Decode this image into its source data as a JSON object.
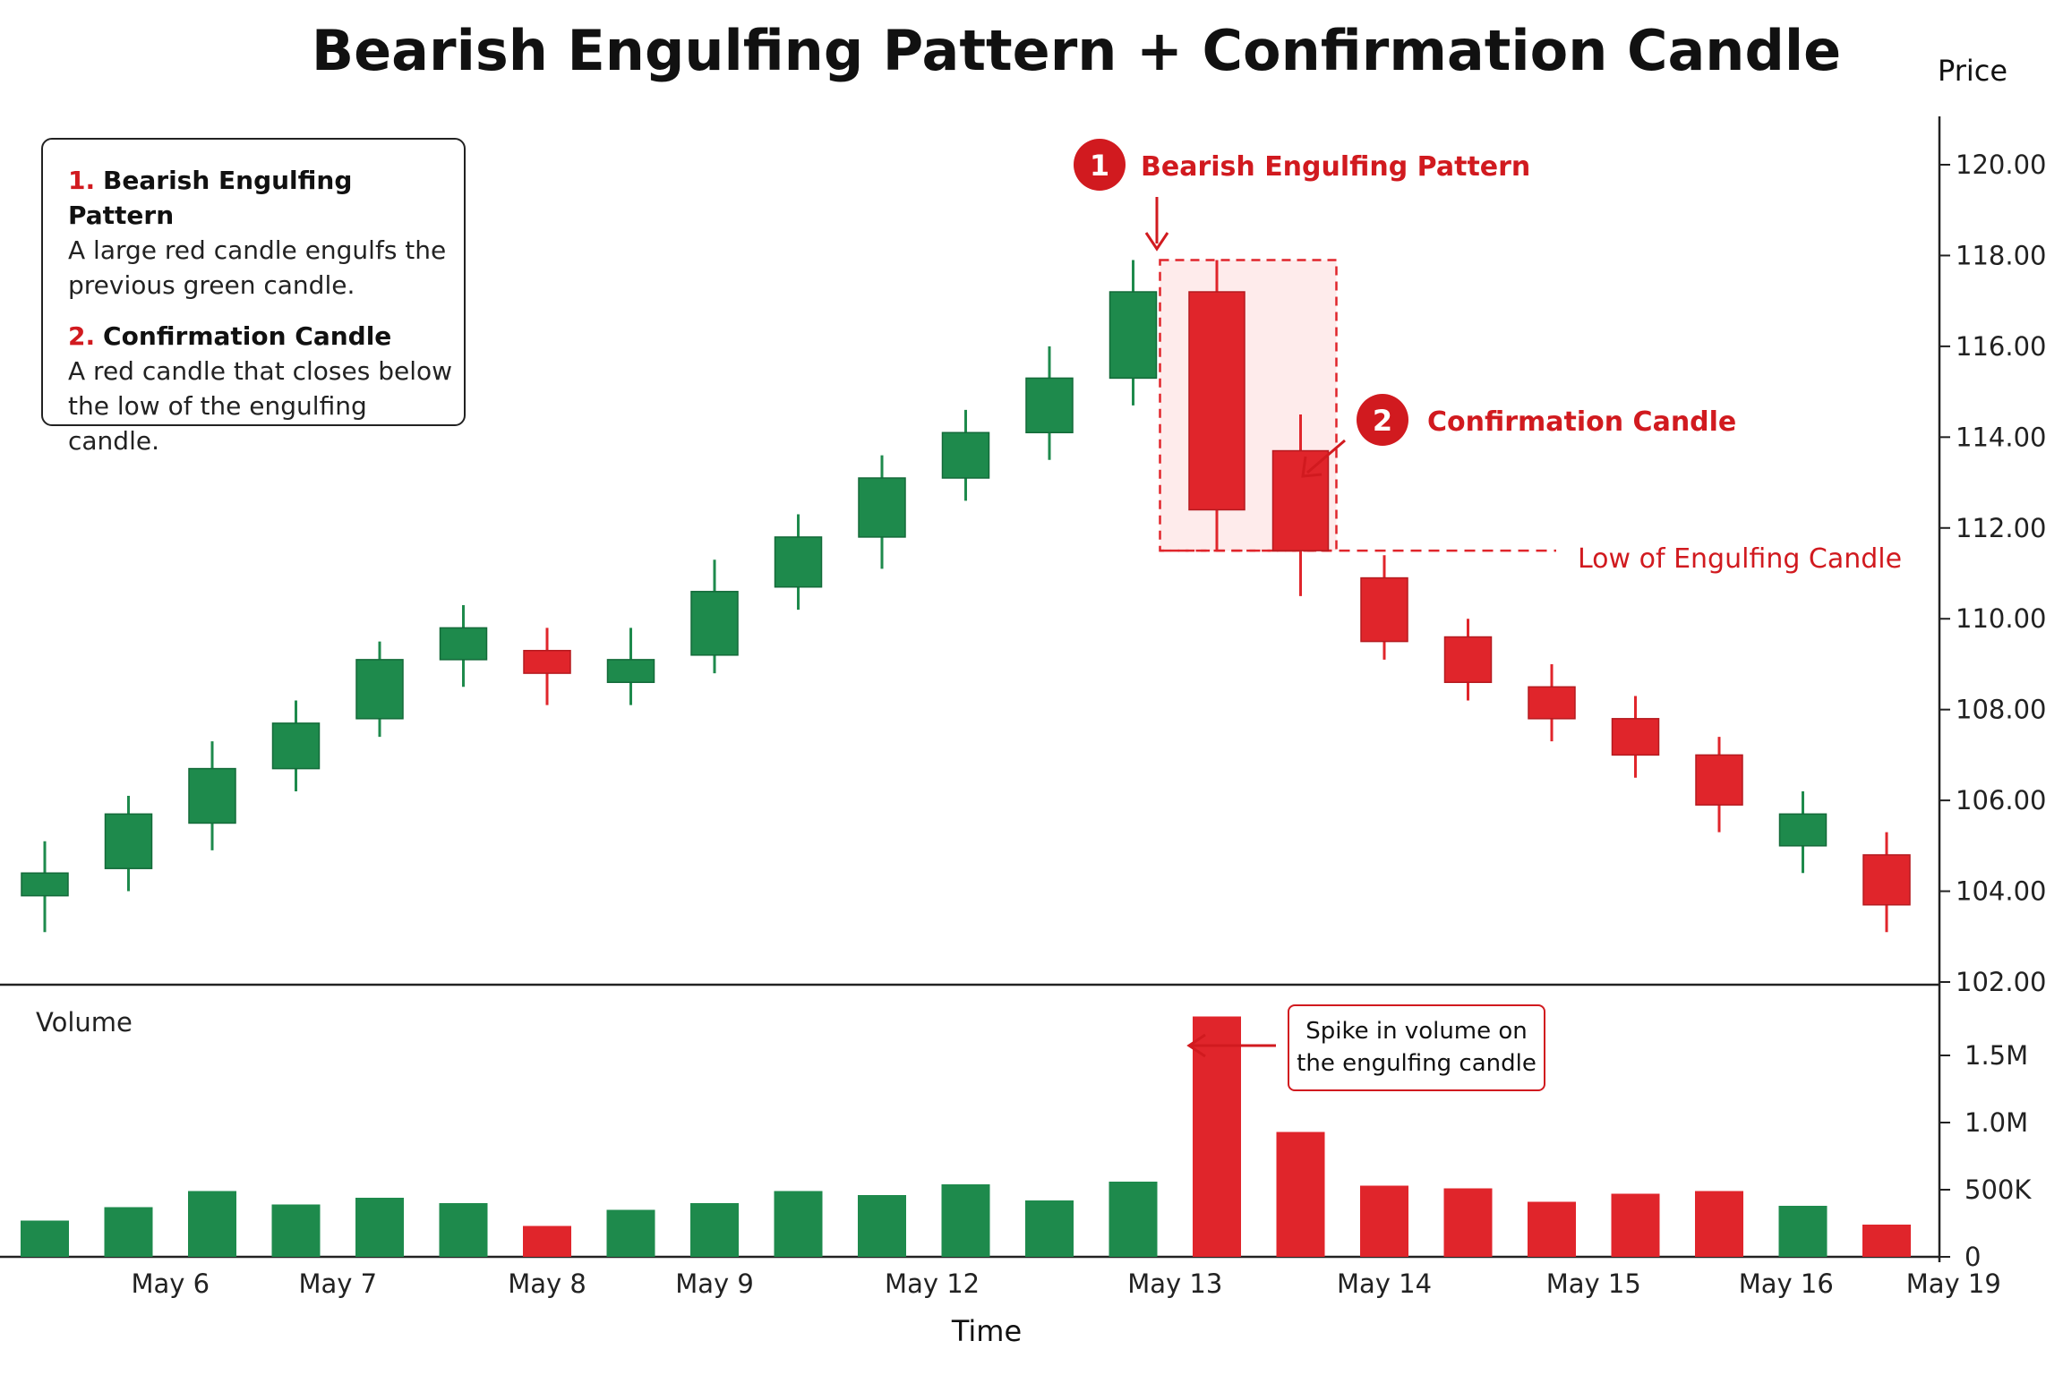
{
  "chart_data": {
    "type": "candlestick",
    "title": "Bearish Engulfing Pattern + Confirmation Candle",
    "xlabel": "Time",
    "ylabel": "Price",
    "volume_label": "Volume",
    "price_ticks": [
      "102.00",
      "104.00",
      "106.00",
      "108.00",
      "110.00",
      "112.00",
      "114.00",
      "116.00",
      "118.00",
      "120.00"
    ],
    "price_ylim": [
      102,
      120
    ],
    "volume_ticks": [
      "0",
      "500K",
      "1.0M",
      "1.5M"
    ],
    "volume_ylim": [
      0,
      1800000
    ],
    "x_tick_labels": [
      {
        "label": "May 6",
        "index": 1.5
      },
      {
        "label": "May 7",
        "index": 3.5
      },
      {
        "label": "May 8",
        "index": 6
      },
      {
        "label": "May 9",
        "index": 8
      },
      {
        "label": "May 12",
        "index": 10.6
      },
      {
        "label": "May 13",
        "index": 13.5
      },
      {
        "label": "May 14",
        "index": 16
      },
      {
        "label": "May 15",
        "index": 18.5
      },
      {
        "label": "May 16",
        "index": 20.8
      },
      {
        "label": "May 19",
        "index": 22.8
      }
    ],
    "candles": [
      {
        "open": 103.9,
        "high": 105.1,
        "low": 103.1,
        "close": 104.4,
        "volume": 270000
      },
      {
        "open": 104.5,
        "high": 106.1,
        "low": 104.0,
        "close": 105.7,
        "volume": 370000
      },
      {
        "open": 105.5,
        "high": 107.3,
        "low": 104.9,
        "close": 106.7,
        "volume": 490000
      },
      {
        "open": 106.7,
        "high": 108.2,
        "low": 106.2,
        "close": 107.7,
        "volume": 390000
      },
      {
        "open": 107.8,
        "high": 109.5,
        "low": 107.4,
        "close": 109.1,
        "volume": 440000
      },
      {
        "open": 109.1,
        "high": 110.3,
        "low": 108.5,
        "close": 109.8,
        "volume": 400000
      },
      {
        "open": 109.3,
        "high": 109.8,
        "low": 108.1,
        "close": 108.8,
        "volume": 230000
      },
      {
        "open": 108.6,
        "high": 109.8,
        "low": 108.1,
        "close": 109.1,
        "volume": 350000
      },
      {
        "open": 109.2,
        "high": 111.3,
        "low": 108.8,
        "close": 110.6,
        "volume": 400000
      },
      {
        "open": 110.7,
        "high": 112.3,
        "low": 110.2,
        "close": 111.8,
        "volume": 490000
      },
      {
        "open": 111.8,
        "high": 113.6,
        "low": 111.1,
        "close": 113.1,
        "volume": 460000
      },
      {
        "open": 113.1,
        "high": 114.6,
        "low": 112.6,
        "close": 114.1,
        "volume": 540000
      },
      {
        "open": 114.1,
        "high": 116.0,
        "low": 113.5,
        "close": 115.3,
        "volume": 420000
      },
      {
        "open": 115.3,
        "high": 117.9,
        "low": 114.7,
        "close": 117.2,
        "volume": 560000
      },
      {
        "open": 117.2,
        "high": 117.9,
        "low": 111.5,
        "close": 112.4,
        "volume": 1790000
      },
      {
        "open": 113.7,
        "high": 114.5,
        "low": 110.5,
        "close": 111.5,
        "volume": 930000
      },
      {
        "open": 110.9,
        "high": 111.4,
        "low": 109.1,
        "close": 109.5,
        "volume": 530000
      },
      {
        "open": 109.6,
        "high": 110.0,
        "low": 108.2,
        "close": 108.6,
        "volume": 510000
      },
      {
        "open": 108.5,
        "high": 109.0,
        "low": 107.3,
        "close": 107.8,
        "volume": 410000
      },
      {
        "open": 107.8,
        "high": 108.3,
        "low": 106.5,
        "close": 107.0,
        "volume": 470000
      },
      {
        "open": 107.0,
        "high": 107.4,
        "low": 105.3,
        "close": 105.9,
        "volume": 490000
      },
      {
        "open": 105.0,
        "high": 106.2,
        "low": 104.4,
        "close": 105.7,
        "volume": 380000
      },
      {
        "open": 104.8,
        "high": 105.3,
        "low": 103.1,
        "close": 103.7,
        "volume": 240000
      }
    ],
    "colors": {
      "up": "#1e8a4c",
      "down": "#e0252b",
      "accent": "#d11a1f",
      "highlight": "#fde4e4"
    },
    "grid": false
  },
  "annotations": {
    "engulfing_number": "1",
    "engulfing_label": "Bearish Engulfing Pattern",
    "confirmation_number": "2",
    "confirmation_label": "Confirmation Candle",
    "low_line_label": "Low of Engulfing Candle",
    "low_line_value": 111.5,
    "spike_line1": "Spike in volume on",
    "spike_line2": "the engulfing candle"
  },
  "legend": {
    "item1_num": "1.",
    "item1_head": "Bearish Engulfing Pattern",
    "item1_line1": "A large red candle engulfs the",
    "item1_line2": "previous green candle.",
    "item2_num": "2.",
    "item2_head": "Confirmation Candle",
    "item2_line1": "A red candle that closes below",
    "item2_line2": "the low of the engulfing candle."
  }
}
